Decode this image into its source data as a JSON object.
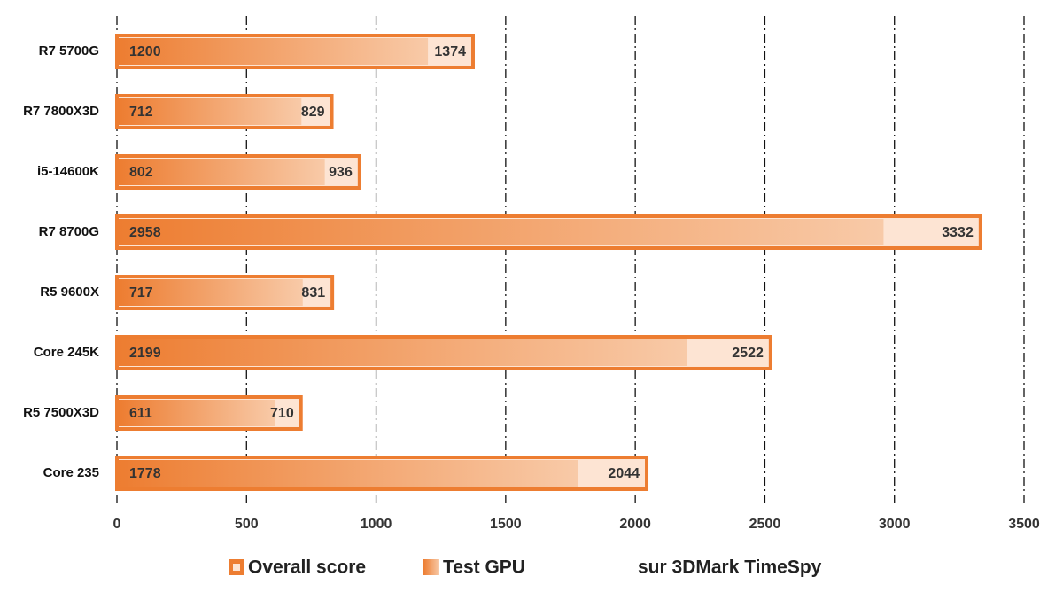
{
  "chart_data": {
    "type": "bar",
    "orientation": "horizontal",
    "note": "sur 3DMark TimeSpy",
    "categories": [
      "R7 5700G",
      "R7 7800X3D",
      "i5-14600K",
      "R7 8700G",
      "R5 9600X",
      "Core 245K",
      "R5 7500X3D",
      "Core 235"
    ],
    "series": [
      {
        "name": "Overall score",
        "color": "#ed7d31",
        "values": [
          1374,
          829,
          936,
          3332,
          831,
          2522,
          710,
          2044
        ]
      },
      {
        "name": "Test GPU",
        "color": "#ed7d31",
        "values": [
          1200,
          712,
          802,
          2958,
          717,
          2199,
          611,
          1778
        ]
      }
    ],
    "xlim": [
      0,
      3500
    ],
    "xticks": [
      0,
      500,
      1000,
      1500,
      2000,
      2500,
      3000,
      3500
    ],
    "grid": true
  }
}
